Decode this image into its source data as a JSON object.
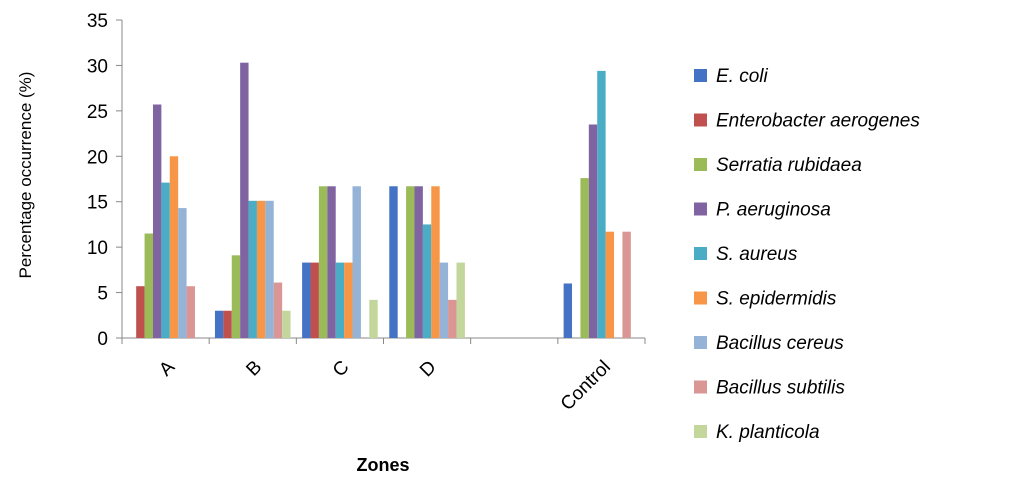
{
  "chart_data": {
    "type": "bar",
    "title": "",
    "xlabel": "Zones",
    "ylabel": "Percentage occurrence (%)",
    "ylim": [
      0,
      35
    ],
    "yticks": [
      "0",
      "5",
      "10",
      "15",
      "20",
      "25",
      "30",
      "35"
    ],
    "categories": [
      "A",
      "B",
      "C",
      "D",
      "",
      "Control"
    ],
    "grid": false,
    "legend_position": "right",
    "series": [
      {
        "name": "E. coli",
        "color": "#4472c4",
        "values": [
          0,
          3,
          8.3,
          16.7,
          0,
          6
        ]
      },
      {
        "name": "Enterobacter aerogenes",
        "color": "#c0504d",
        "values": [
          5.7,
          3,
          8.3,
          0,
          0,
          0
        ]
      },
      {
        "name": "Serratia rubidaea",
        "color": "#9bbb59",
        "values": [
          11.5,
          9.1,
          16.7,
          16.7,
          0,
          17.6
        ]
      },
      {
        "name": "P. aeruginosa",
        "color": "#8064a2",
        "values": [
          25.7,
          30.3,
          16.7,
          16.7,
          0,
          23.5
        ]
      },
      {
        "name": "S. aureus",
        "color": "#4bacc6",
        "values": [
          17.1,
          15.1,
          8.3,
          12.5,
          0,
          29.4
        ]
      },
      {
        "name": "S. epidermidis",
        "color": "#f79646",
        "values": [
          20,
          15.1,
          8.3,
          16.7,
          0,
          11.7
        ]
      },
      {
        "name": "Bacillus cereus",
        "color": "#95b3d7",
        "values": [
          14.3,
          15.1,
          16.7,
          8.3,
          0,
          0
        ]
      },
      {
        "name": "Bacillus subtilis",
        "color": "#d99694",
        "values": [
          5.7,
          6.1,
          0,
          4.2,
          0,
          11.7
        ]
      },
      {
        "name": "K. planticola",
        "color": "#c3d69b",
        "values": [
          0,
          3,
          4.2,
          8.3,
          0,
          0
        ]
      }
    ]
  }
}
